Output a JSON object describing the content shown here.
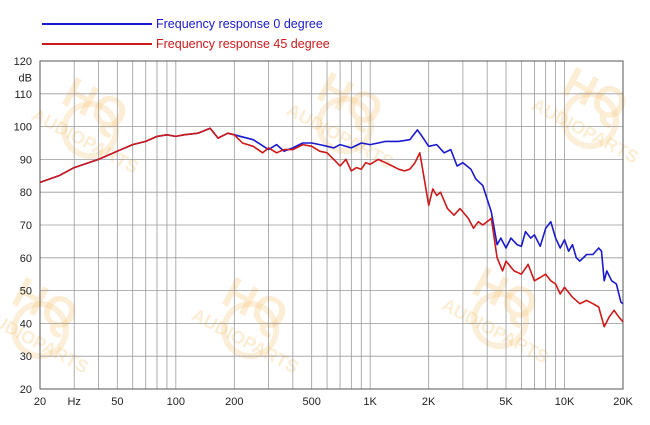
{
  "chart_data": {
    "type": "line",
    "title": "",
    "xlabel": "Hz",
    "ylabel": "dB",
    "xscale": "log",
    "xlim": [
      20,
      20000
    ],
    "ylim": [
      20,
      120
    ],
    "grid": true,
    "legend_position": "top-left",
    "y_ticks": [
      "20",
      "30",
      "40",
      "50",
      "60",
      "70",
      "80",
      "90",
      "100",
      "110",
      "120"
    ],
    "x_ticks": [
      {
        "value": 20,
        "label": "20"
      },
      {
        "value": 30,
        "label": "Hz"
      },
      {
        "value": 50,
        "label": "50"
      },
      {
        "value": 100,
        "label": "100"
      },
      {
        "value": 200,
        "label": "200"
      },
      {
        "value": 500,
        "label": "500"
      },
      {
        "value": 1000,
        "label": "1K"
      },
      {
        "value": 2000,
        "label": "2K"
      },
      {
        "value": 5000,
        "label": "5K"
      },
      {
        "value": 10000,
        "label": "10K"
      },
      {
        "value": 20000,
        "label": "20K"
      }
    ],
    "series": [
      {
        "name": "Frequency response 0 degree",
        "color": "#1a1acc",
        "points": [
          [
            20,
            83
          ],
          [
            25,
            85
          ],
          [
            30,
            87.5
          ],
          [
            40,
            90
          ],
          [
            50,
            92.5
          ],
          [
            60,
            94.5
          ],
          [
            70,
            95.5
          ],
          [
            80,
            97
          ],
          [
            90,
            97.5
          ],
          [
            100,
            97
          ],
          [
            110,
            97.5
          ],
          [
            130,
            98
          ],
          [
            150,
            99.5
          ],
          [
            165,
            96.5
          ],
          [
            185,
            98
          ],
          [
            200,
            97.5
          ],
          [
            250,
            96
          ],
          [
            300,
            93
          ],
          [
            330,
            94.5
          ],
          [
            360,
            92.5
          ],
          [
            400,
            93.5
          ],
          [
            450,
            95
          ],
          [
            500,
            95
          ],
          [
            550,
            94.5
          ],
          [
            600,
            94
          ],
          [
            650,
            93.5
          ],
          [
            700,
            94.5
          ],
          [
            800,
            93.5
          ],
          [
            900,
            95
          ],
          [
            1000,
            94.5
          ],
          [
            1200,
            95.5
          ],
          [
            1400,
            95.5
          ],
          [
            1600,
            96
          ],
          [
            1750,
            99
          ],
          [
            1850,
            97
          ],
          [
            2000,
            94
          ],
          [
            2200,
            94.5
          ],
          [
            2400,
            92
          ],
          [
            2600,
            93
          ],
          [
            2800,
            88
          ],
          [
            3000,
            89
          ],
          [
            3300,
            87
          ],
          [
            3500,
            84
          ],
          [
            3800,
            82
          ],
          [
            4200,
            74
          ],
          [
            4500,
            64
          ],
          [
            4700,
            66
          ],
          [
            5000,
            63
          ],
          [
            5300,
            66
          ],
          [
            5700,
            64
          ],
          [
            6000,
            63.5
          ],
          [
            6300,
            68
          ],
          [
            6700,
            66
          ],
          [
            7000,
            67
          ],
          [
            7500,
            63.5
          ],
          [
            8000,
            69
          ],
          [
            8500,
            71
          ],
          [
            9000,
            66
          ],
          [
            9500,
            63
          ],
          [
            10000,
            65.5
          ],
          [
            10500,
            62
          ],
          [
            11000,
            64
          ],
          [
            11500,
            60
          ],
          [
            12000,
            59
          ],
          [
            13000,
            61
          ],
          [
            14000,
            61
          ],
          [
            15000,
            63
          ],
          [
            15500,
            62
          ],
          [
            16000,
            53
          ],
          [
            16500,
            56
          ],
          [
            17500,
            53
          ],
          [
            18500,
            52
          ],
          [
            19500,
            46.5
          ],
          [
            20000,
            46
          ]
        ]
      },
      {
        "name": "Frequency response 45 degree",
        "color": "#cc1a1a",
        "points": [
          [
            20,
            83
          ],
          [
            25,
            85
          ],
          [
            30,
            87.5
          ],
          [
            40,
            90
          ],
          [
            50,
            92.5
          ],
          [
            60,
            94.5
          ],
          [
            70,
            95.5
          ],
          [
            80,
            97
          ],
          [
            90,
            97.5
          ],
          [
            100,
            97
          ],
          [
            110,
            97.5
          ],
          [
            130,
            98
          ],
          [
            150,
            99.5
          ],
          [
            165,
            96.5
          ],
          [
            185,
            98
          ],
          [
            200,
            97.5
          ],
          [
            220,
            95
          ],
          [
            250,
            94
          ],
          [
            280,
            92
          ],
          [
            300,
            93.5
          ],
          [
            330,
            92
          ],
          [
            360,
            93
          ],
          [
            400,
            93
          ],
          [
            450,
            94.5
          ],
          [
            500,
            94
          ],
          [
            550,
            92.5
          ],
          [
            600,
            92
          ],
          [
            650,
            90
          ],
          [
            700,
            88
          ],
          [
            750,
            90
          ],
          [
            800,
            86.5
          ],
          [
            850,
            87.5
          ],
          [
            900,
            87
          ],
          [
            950,
            89
          ],
          [
            1000,
            88.5
          ],
          [
            1100,
            90
          ],
          [
            1200,
            89
          ],
          [
            1300,
            88
          ],
          [
            1400,
            87
          ],
          [
            1500,
            86.5
          ],
          [
            1600,
            87
          ],
          [
            1700,
            89
          ],
          [
            1800,
            92
          ],
          [
            1900,
            84
          ],
          [
            2000,
            76
          ],
          [
            2100,
            81
          ],
          [
            2200,
            79
          ],
          [
            2300,
            80
          ],
          [
            2500,
            75
          ],
          [
            2700,
            73
          ],
          [
            2900,
            75
          ],
          [
            3000,
            74
          ],
          [
            3200,
            72
          ],
          [
            3400,
            69
          ],
          [
            3600,
            71
          ],
          [
            3800,
            70
          ],
          [
            4200,
            72
          ],
          [
            4500,
            60
          ],
          [
            4800,
            56
          ],
          [
            5000,
            59
          ],
          [
            5500,
            56
          ],
          [
            6000,
            55
          ],
          [
            6500,
            58
          ],
          [
            7000,
            53
          ],
          [
            7500,
            54
          ],
          [
            8000,
            55
          ],
          [
            8500,
            53
          ],
          [
            9000,
            52
          ],
          [
            9500,
            49
          ],
          [
            10000,
            51
          ],
          [
            11000,
            48
          ],
          [
            12000,
            46
          ],
          [
            13000,
            47
          ],
          [
            14000,
            46
          ],
          [
            15000,
            45
          ],
          [
            16000,
            39
          ],
          [
            17000,
            42
          ],
          [
            18000,
            44
          ],
          [
            19000,
            42
          ],
          [
            20000,
            40.5
          ]
        ]
      }
    ],
    "watermark": "HQ AUDIOPARTS"
  }
}
